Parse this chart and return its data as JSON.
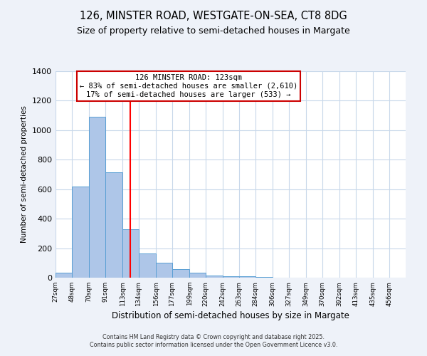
{
  "title1": "126, MINSTER ROAD, WESTGATE-ON-SEA, CT8 8DG",
  "title2": "Size of property relative to semi-detached houses in Margate",
  "xlabel": "Distribution of semi-detached houses by size in Margate",
  "ylabel": "Number of semi-detached properties",
  "bar_left_edges": [
    27,
    48,
    70,
    91,
    113,
    134,
    156,
    177,
    199,
    220,
    242,
    263,
    284,
    306,
    327,
    349,
    370,
    392,
    413,
    435
  ],
  "bar_widths": [
    21,
    22,
    21,
    22,
    21,
    22,
    21,
    22,
    21,
    22,
    21,
    21,
    22,
    21,
    22,
    21,
    22,
    21,
    22,
    21
  ],
  "bar_heights": [
    35,
    620,
    1090,
    715,
    330,
    165,
    100,
    60,
    35,
    15,
    10,
    10,
    7,
    2,
    1,
    1,
    0,
    0,
    0,
    0
  ],
  "tick_labels": [
    "27sqm",
    "48sqm",
    "70sqm",
    "91sqm",
    "113sqm",
    "134sqm",
    "156sqm",
    "177sqm",
    "199sqm",
    "220sqm",
    "242sqm",
    "263sqm",
    "284sqm",
    "306sqm",
    "327sqm",
    "349sqm",
    "370sqm",
    "392sqm",
    "413sqm",
    "435sqm",
    "456sqm"
  ],
  "bar_color": "#aec6e8",
  "bar_edge_color": "#5a9fd4",
  "ylim": [
    0,
    1400
  ],
  "yticks": [
    0,
    200,
    400,
    600,
    800,
    1000,
    1200,
    1400
  ],
  "xlim_left": 27,
  "xlim_right": 477,
  "red_line_x": 123,
  "annotation_title": "126 MINSTER ROAD: 123sqm",
  "annotation_line1": "← 83% of semi-detached houses are smaller (2,610)",
  "annotation_line2": "17% of semi-detached houses are larger (533) →",
  "footer1": "Contains HM Land Registry data © Crown copyright and database right 2025.",
  "footer2": "Contains public sector information licensed under the Open Government Licence v3.0.",
  "bg_color": "#eef2f9",
  "plot_bg_color": "#ffffff",
  "grid_color": "#c8d8ea",
  "title_fontsize": 10.5,
  "subtitle_fontsize": 9,
  "annotation_box_color": "#ffffff",
  "annotation_box_edge_color": "#cc0000",
  "annotation_fontsize": 7.5
}
